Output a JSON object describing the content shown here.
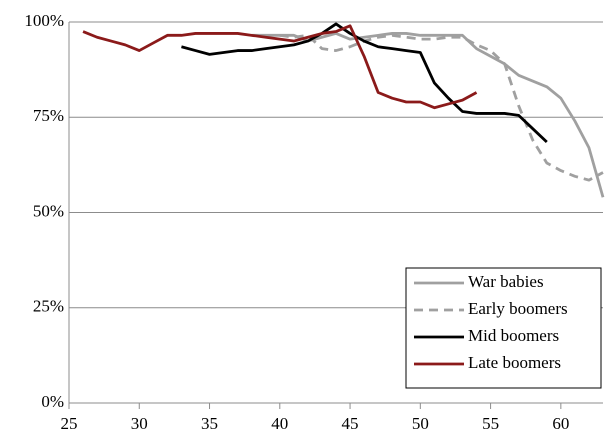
{
  "chart_data": {
    "type": "line",
    "xlim": [
      25,
      63
    ],
    "xticks": [
      25,
      30,
      35,
      40,
      45,
      50,
      55,
      60
    ],
    "ylim": [
      0,
      100
    ],
    "yticks": [
      {
        "value": 0,
        "label": "0%"
      },
      {
        "value": 25,
        "label": "25%"
      },
      {
        "value": 50,
        "label": "50%"
      },
      {
        "value": 75,
        "label": "75%"
      },
      {
        "value": 100,
        "label": "100%"
      }
    ],
    "grid": true,
    "legend": "bottom-right",
    "series": [
      {
        "name": "War babies",
        "color": "#a0a0a0",
        "style": "solid",
        "x": [
          38,
          39,
          40,
          41,
          42,
          43,
          44,
          45,
          46,
          47,
          48,
          49,
          50,
          51,
          52,
          53,
          54,
          55,
          56,
          57,
          58,
          59,
          60,
          61,
          62,
          63
        ],
        "values": [
          96.5,
          96.5,
          96.5,
          96.5,
          95,
          96,
          97,
          95.5,
          96,
          96.5,
          97,
          97,
          96.5,
          96.5,
          96.5,
          96.5,
          93,
          91,
          89,
          86,
          84.5,
          83,
          80,
          74,
          67,
          54
        ]
      },
      {
        "name": "Early boomers",
        "color": "#a0a0a0",
        "style": "dashed",
        "x": [
          40,
          41,
          42,
          43,
          44,
          45,
          46,
          47,
          48,
          49,
          50,
          51,
          52,
          53,
          54,
          55,
          56,
          57,
          58,
          59,
          60,
          61,
          62,
          63
        ],
        "values": [
          96.5,
          96,
          96.5,
          93,
          92.5,
          93.5,
          95,
          96,
          96.5,
          96,
          95.5,
          95.5,
          96,
          96,
          94,
          92.5,
          89,
          78,
          69,
          63,
          61,
          59.5,
          58.5,
          60.5
        ]
      },
      {
        "name": "Mid boomers",
        "color": "#000000",
        "style": "solid",
        "x": [
          33,
          34,
          35,
          36,
          37,
          38,
          39,
          40,
          41,
          42,
          43,
          44,
          45,
          46,
          47,
          48,
          49,
          50,
          51,
          52,
          53,
          54,
          55,
          56,
          57,
          58,
          59
        ],
        "values": [
          93.5,
          92.5,
          91.5,
          92,
          92.5,
          92.5,
          93,
          93.5,
          94,
          95,
          97,
          99.5,
          97,
          95,
          93.5,
          93,
          92.5,
          92,
          84,
          80,
          76.5,
          76,
          76,
          76,
          75.5,
          72,
          68.5
        ]
      },
      {
        "name": "Late boomers",
        "color": "#8b1a1a",
        "style": "solid",
        "x": [
          26,
          27,
          28,
          29,
          30,
          31,
          32,
          33,
          34,
          35,
          36,
          37,
          38,
          39,
          40,
          41,
          42,
          43,
          44,
          45,
          46,
          47,
          48,
          49,
          50,
          51,
          52,
          53,
          54
        ],
        "values": [
          97.5,
          96,
          95,
          94,
          92.5,
          94.5,
          96.5,
          96.5,
          97,
          97,
          97,
          97,
          96.5,
          96,
          95.5,
          95,
          96,
          97,
          97.5,
          99,
          91,
          81.5,
          80,
          79,
          79,
          77.5,
          78.5,
          79.5,
          81.5
        ]
      }
    ]
  }
}
